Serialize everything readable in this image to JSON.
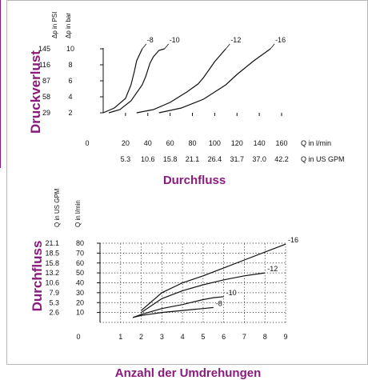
{
  "colors": {
    "accent": "#8b1a7e",
    "frame": "#b8b8b8",
    "ink": "#111111"
  },
  "chart_data": [
    {
      "type": "line",
      "title": "Druckverlust",
      "xlabel": "Durchfluss",
      "x_unit_labels": [
        "Q in l/min",
        "Q in US GPM"
      ],
      "y_unit_labels": [
        "Δp in PSI",
        "Δp in bar"
      ],
      "xlim": [
        0,
        160
      ],
      "ylim": [
        0,
        10
      ],
      "x_ticks": [
        0,
        20,
        40,
        60,
        80,
        100,
        120,
        140,
        160
      ],
      "x_tick_labels": [
        "0",
        "20",
        "40",
        "60",
        "80",
        "100",
        "120",
        "140",
        "160"
      ],
      "x2_tick_labels": [
        "5.3",
        "10.6",
        "15.8",
        "21.1",
        "26.4",
        "31.7",
        "37.0",
        "42.2"
      ],
      "y_ticks": [
        2,
        4,
        6,
        8,
        10
      ],
      "y_tick_labels": [
        "2",
        "4",
        "6",
        "8",
        "10"
      ],
      "y2_tick_labels": [
        "29",
        "58",
        "87",
        "116",
        "145"
      ],
      "grid": false,
      "series": [
        {
          "name": "-8",
          "x": [
            0,
            10,
            20,
            25,
            28,
            30,
            35
          ],
          "y": [
            2,
            2.6,
            3.8,
            5.5,
            7.2,
            8.5,
            10
          ]
        },
        {
          "name": "-10",
          "x": [
            5,
            15,
            25,
            35,
            38,
            42,
            45,
            50,
            55
          ],
          "y": [
            2,
            2.4,
            3.5,
            5.5,
            6.5,
            8.2,
            9,
            9.8,
            10
          ]
        },
        {
          "name": "-12",
          "x": [
            30,
            45,
            60,
            75,
            85,
            90,
            95,
            100,
            110
          ],
          "y": [
            2,
            2.4,
            3.3,
            4.6,
            5.6,
            6.4,
            7.4,
            8.4,
            10
          ]
        },
        {
          "name": "-16",
          "x": [
            50,
            70,
            90,
            110,
            120,
            135,
            150
          ],
          "y": [
            2,
            2.6,
            3.7,
            5.5,
            6.8,
            8.5,
            10
          ]
        }
      ]
    },
    {
      "type": "line",
      "title": "Durchfluss",
      "xlabel": "Anzahl der Umdrehungen",
      "y_unit_labels": [
        "Q in US GPM",
        "Q in l/min"
      ],
      "xlim": [
        0,
        9
      ],
      "ylim": [
        0,
        80
      ],
      "x_ticks": [
        0,
        1,
        2,
        3,
        4,
        5,
        6,
        7,
        8,
        9
      ],
      "x_tick_labels": [
        "0",
        "1",
        "2",
        "3",
        "4",
        "5",
        "6",
        "7",
        "8",
        "9"
      ],
      "y_ticks": [
        10,
        20,
        30,
        40,
        50,
        60,
        70,
        80
      ],
      "y_tick_labels": [
        "10",
        "20",
        "30",
        "40",
        "50",
        "60",
        "70",
        "80"
      ],
      "y2_tick_labels": [
        "2.6",
        "5.3",
        "7.9",
        "10.6",
        "13.2",
        "15.8",
        "18.5",
        "21.1"
      ],
      "grid": true,
      "series": [
        {
          "name": "-16",
          "x": [
            2,
            3,
            4,
            5,
            6,
            7,
            8,
            9
          ],
          "y": [
            12,
            30,
            40,
            47,
            55,
            63,
            71,
            79
          ]
        },
        {
          "name": "-12",
          "x": [
            2,
            3,
            4,
            5,
            6,
            7,
            8
          ],
          "y": [
            10,
            24,
            32,
            38,
            43,
            47,
            50
          ]
        },
        {
          "name": "-10",
          "x": [
            1.6,
            2,
            3,
            4,
            5,
            5.5,
            6
          ],
          "y": [
            5,
            8,
            14,
            18,
            23,
            25,
            26
          ]
        },
        {
          "name": "-8",
          "x": [
            1.6,
            2,
            3,
            4,
            4.5,
            5,
            5.5
          ],
          "y": [
            5,
            7,
            10,
            12,
            13,
            14,
            15
          ]
        }
      ]
    }
  ]
}
